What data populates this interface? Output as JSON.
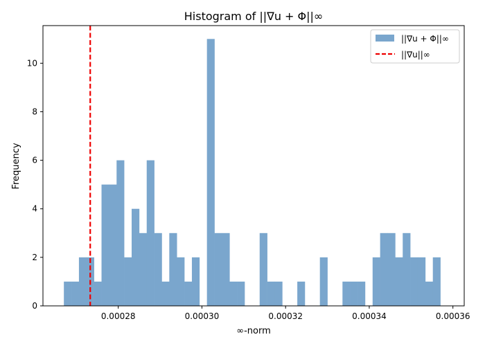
{
  "chart_data": {
    "type": "histogram",
    "title": "Histogram of ||∇u + Φ||∞",
    "xlabel": "∞-norm",
    "ylabel": "Frequency",
    "xlim": [
      0.000262,
      0.0003627
    ],
    "ylim": [
      0,
      11.55
    ],
    "x_ticks": [
      0.00028,
      0.0003,
      0.00032,
      0.00034,
      0.00036
    ],
    "x_tick_labels": [
      "0.00028",
      "0.00030",
      "0.00032",
      "0.00034",
      "0.00036"
    ],
    "y_ticks": [
      0,
      2,
      4,
      6,
      8,
      10
    ],
    "y_tick_labels": [
      "0",
      "2",
      "4",
      "6",
      "8",
      "10"
    ],
    "bin_start": 0.000267,
    "bin_width": 1.8e-06,
    "counts": [
      1,
      1,
      2,
      2,
      1,
      5,
      5,
      6,
      2,
      4,
      3,
      6,
      3,
      1,
      3,
      2,
      1,
      2,
      0,
      11,
      3,
      3,
      1,
      1,
      0,
      0,
      3,
      1,
      1,
      0,
      0,
      1,
      0,
      0,
      2,
      0,
      0,
      1,
      1,
      1,
      0,
      2,
      3,
      3,
      2,
      3,
      2,
      2,
      1,
      2
    ],
    "series": [
      {
        "name": "||∇u + Φ||∞",
        "kind": "bars",
        "color": "#7aa6cd"
      },
      {
        "name": "||∇u||∞",
        "kind": "vline",
        "x": 0.0002733,
        "color": "#ee0000",
        "linestyle": "dashed"
      }
    ],
    "legend_position": "upper right",
    "grid": false
  }
}
